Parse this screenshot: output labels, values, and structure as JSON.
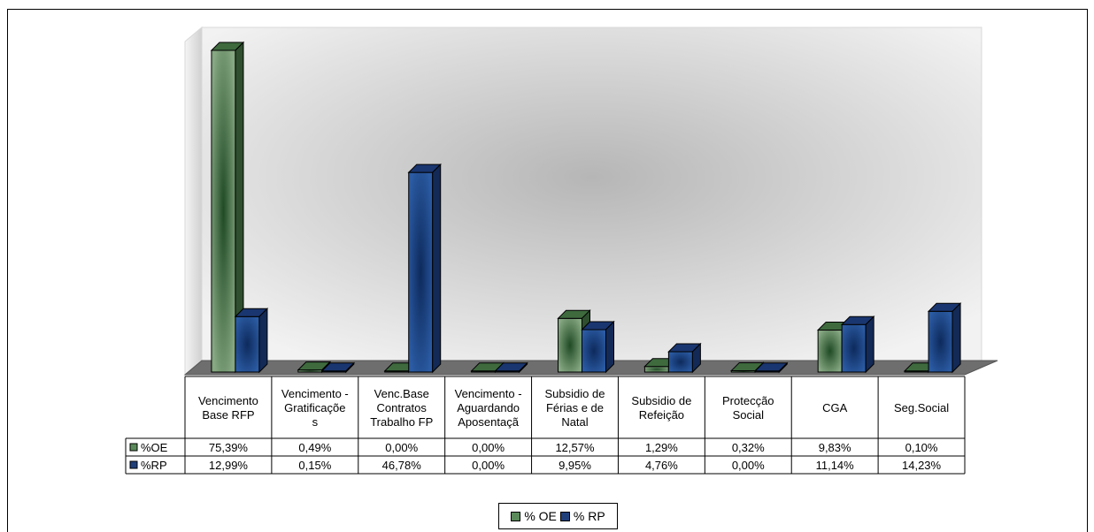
{
  "chart_data": {
    "type": "bar",
    "title": "",
    "categories": [
      [
        "Vencimento",
        "Base RFP"
      ],
      [
        "Vencimento -",
        "Gratificaçõe",
        "s"
      ],
      [
        "Venc.Base",
        "Contratos",
        "Trabalho FP"
      ],
      [
        "Vencimento -",
        "Aguardando",
        "Aposentaçã"
      ],
      [
        "Subsidio de",
        "Férias e de",
        "Natal"
      ],
      [
        "Subsidio de",
        "Refeição"
      ],
      [
        "Protecção",
        "Social"
      ],
      [
        "CGA"
      ],
      [
        "Seg.Social"
      ]
    ],
    "series": [
      {
        "name": "% OE",
        "table_label": "%OE",
        "color": "#5a8a5a",
        "values": [
          75.39,
          0.49,
          0.0,
          0.0,
          12.57,
          1.29,
          0.32,
          9.83,
          0.1
        ],
        "labels": [
          "75,39%",
          "0,49%",
          "0,00%",
          "0,00%",
          "12,57%",
          "1,29%",
          "0,32%",
          "9,83%",
          "0,10%"
        ]
      },
      {
        "name": "% RP",
        "table_label": "%RP",
        "color": "#1f3f7a",
        "values": [
          12.99,
          0.15,
          46.78,
          0.0,
          9.95,
          4.76,
          0.0,
          11.14,
          14.23
        ],
        "labels": [
          "12,99%",
          "0,15%",
          "46,78%",
          "0,00%",
          "9,95%",
          "4,76%",
          "0,00%",
          "11,14%",
          "14,23%"
        ]
      }
    ],
    "ylim": [
      0,
      80
    ],
    "grid": false,
    "legend": "bottom",
    "data_table": true
  }
}
